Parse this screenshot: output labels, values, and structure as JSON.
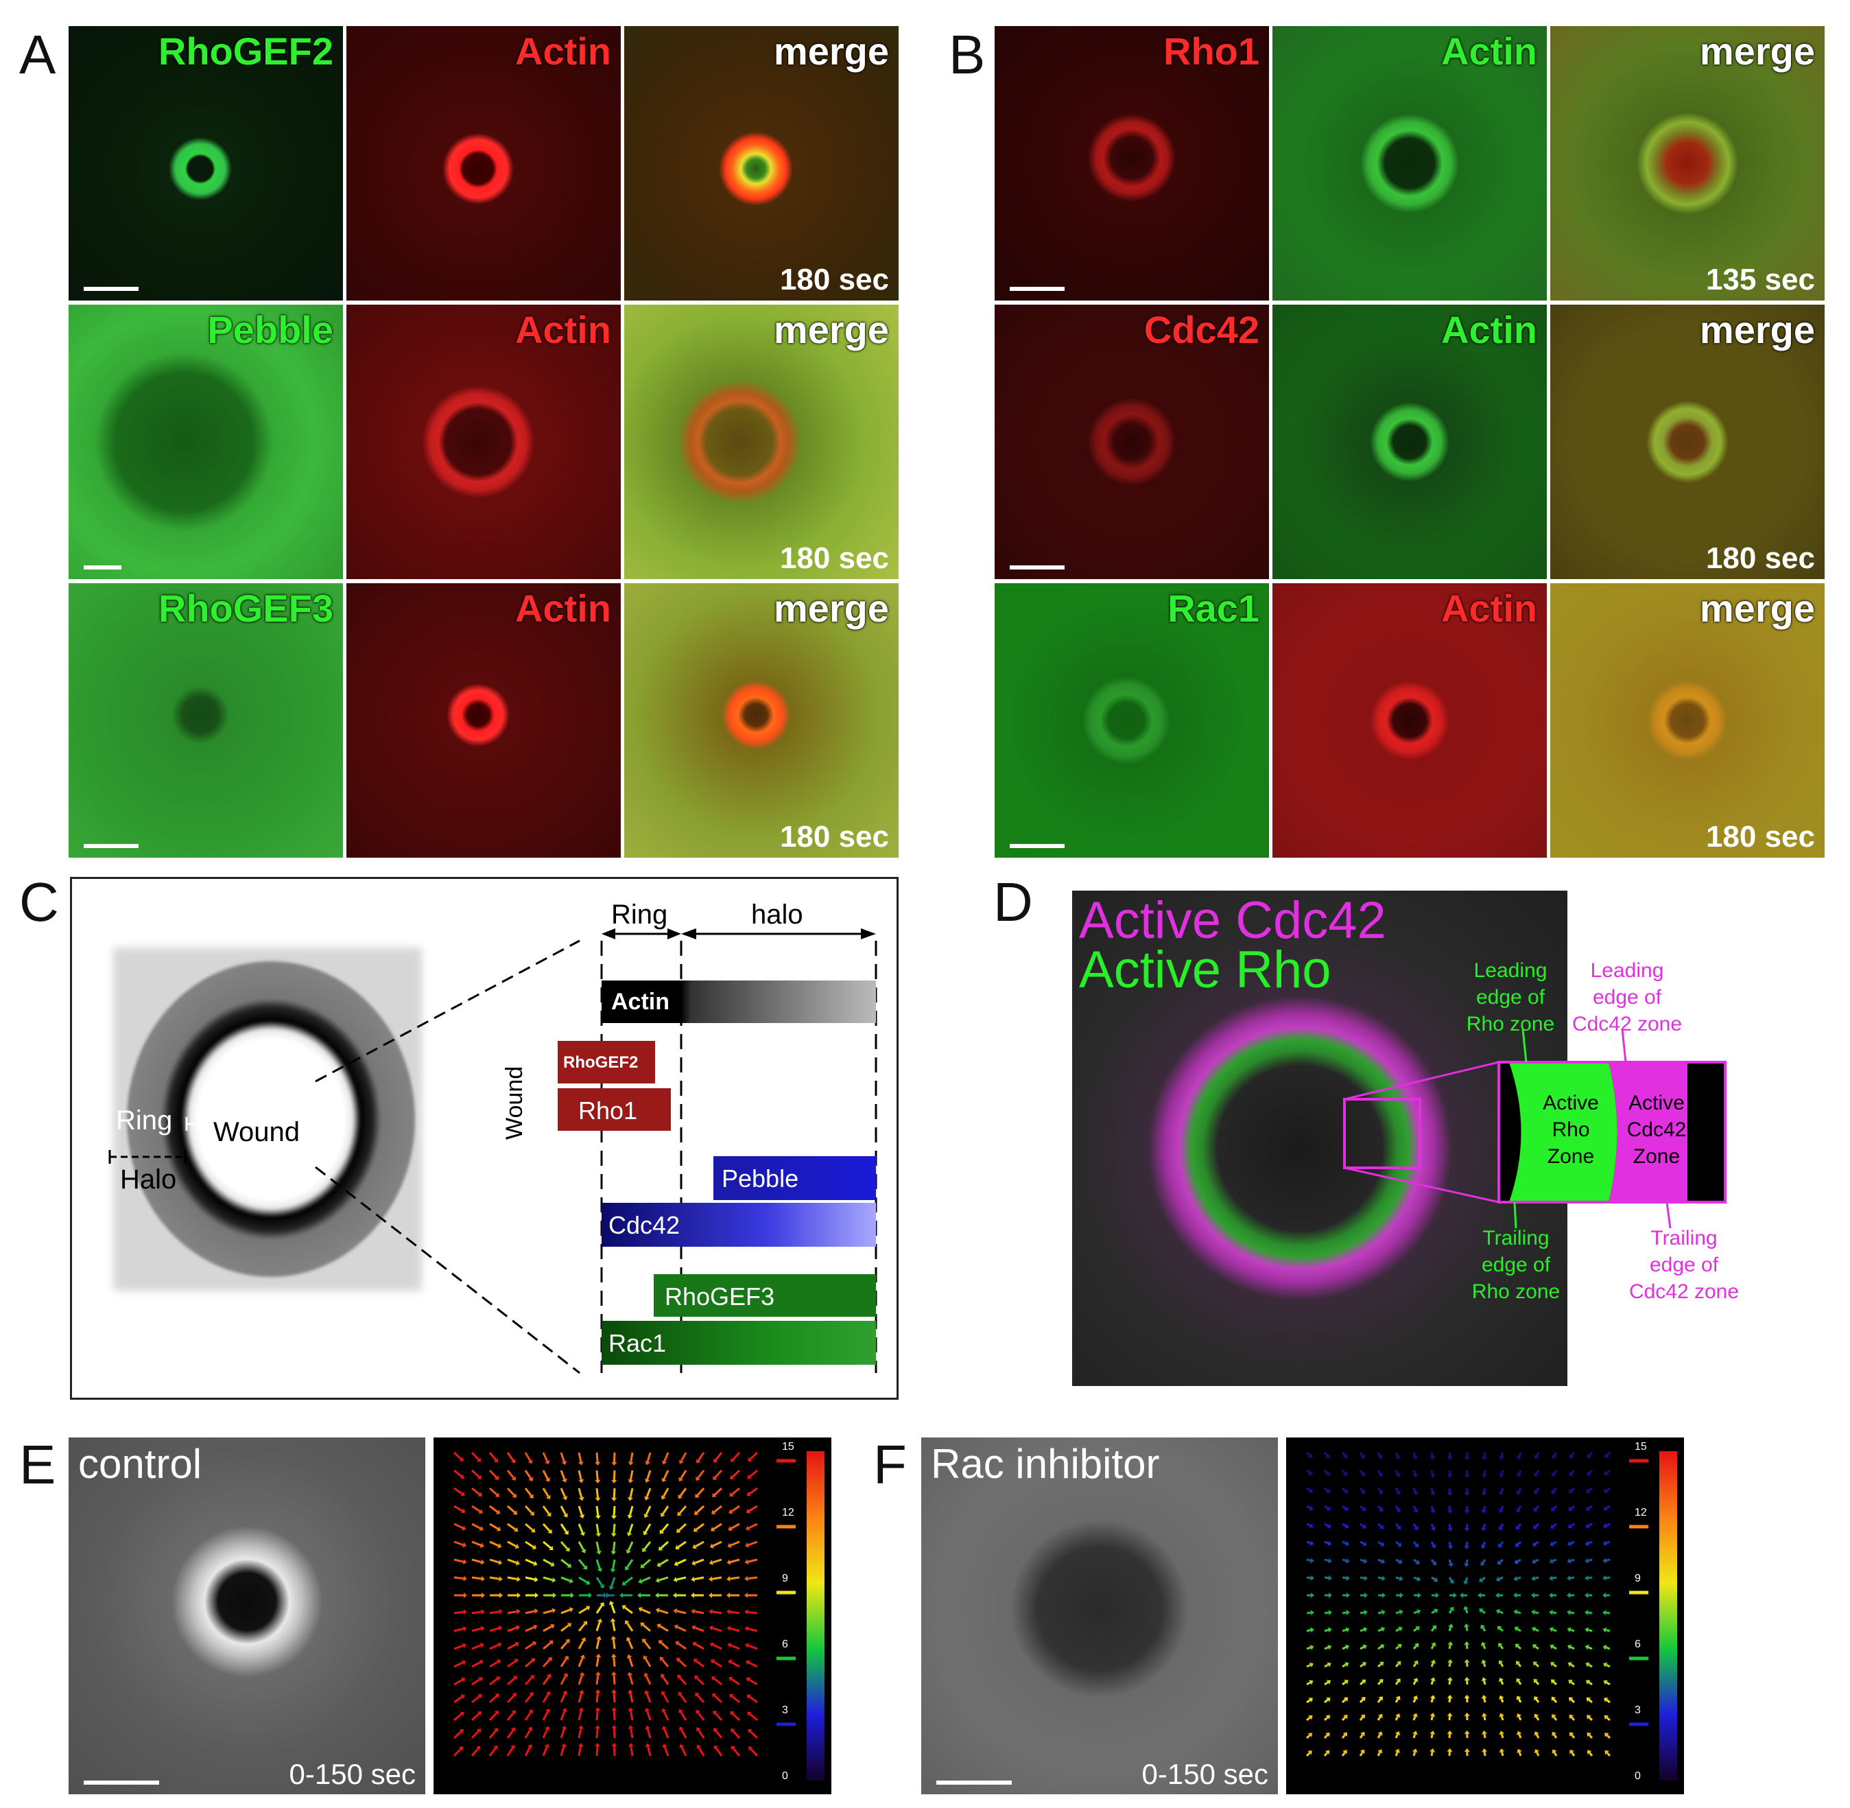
{
  "panel_letters": {
    "a": "A",
    "b": "B",
    "c": "C",
    "d": "D",
    "e": "E",
    "f": "F"
  },
  "panelA": {
    "rows": [
      {
        "ch1": "RhoGEF2",
        "ch2": "Actin",
        "ch3": "merge",
        "time": "180 sec"
      },
      {
        "ch1": "Pebble",
        "ch2": "Actin",
        "ch3": "merge",
        "time": "180 sec"
      },
      {
        "ch1": "RhoGEF3",
        "ch2": "Actin",
        "ch3": "merge",
        "time": "180 sec"
      }
    ]
  },
  "panelB": {
    "rows": [
      {
        "ch1": "Rho1",
        "ch2": "Actin",
        "ch3": "merge",
        "time": "135 sec"
      },
      {
        "ch1": "Cdc42",
        "ch2": "Actin",
        "ch3": "merge",
        "time": "180 sec"
      },
      {
        "ch1": "Rac1",
        "ch2": "Actin",
        "ch3": "merge",
        "time": "180 sec"
      }
    ]
  },
  "panelC": {
    "ring_label": "Ring",
    "wound_label": "Wound",
    "halo_label": "Halo",
    "ring_header": "Ring",
    "halo_header": "halo",
    "wound_axis": "Wound",
    "bars": {
      "actin": "Actin",
      "rhogef2": "RhoGEF2",
      "rho1": "Rho1",
      "pebble": "Pebble",
      "cdc42": "Cdc42",
      "rhogef3": "RhoGEF3",
      "rac1": "Rac1"
    }
  },
  "panelD": {
    "legend_cdc42": "Active Cdc42",
    "legend_rho": "Active Rho",
    "lead_rho": "Leading\nedge of\nRho zone",
    "lead_cdc42": "Leading\nedge of\nCdc42 zone",
    "trail_rho": "Trailing\nedge of\nRho zone",
    "trail_cdc42": "Trailing\nedge of\nCdc42 zone",
    "zone_rho": "Active\nRho\nZone",
    "zone_cdc42": "Active\nCdc42\nZone",
    "colors": {
      "rho": "#28f028",
      "cdc42": "#e030e0"
    }
  },
  "panelE": {
    "title": "control",
    "time": "0-150 sec",
    "scale_ticks": [
      "15",
      "12",
      "9",
      "6",
      "3",
      "0"
    ]
  },
  "panelF": {
    "title": "Rac inhibitor",
    "time": "0-150 sec",
    "scale_ticks": [
      "15",
      "12",
      "9",
      "6",
      "3",
      "0"
    ]
  }
}
